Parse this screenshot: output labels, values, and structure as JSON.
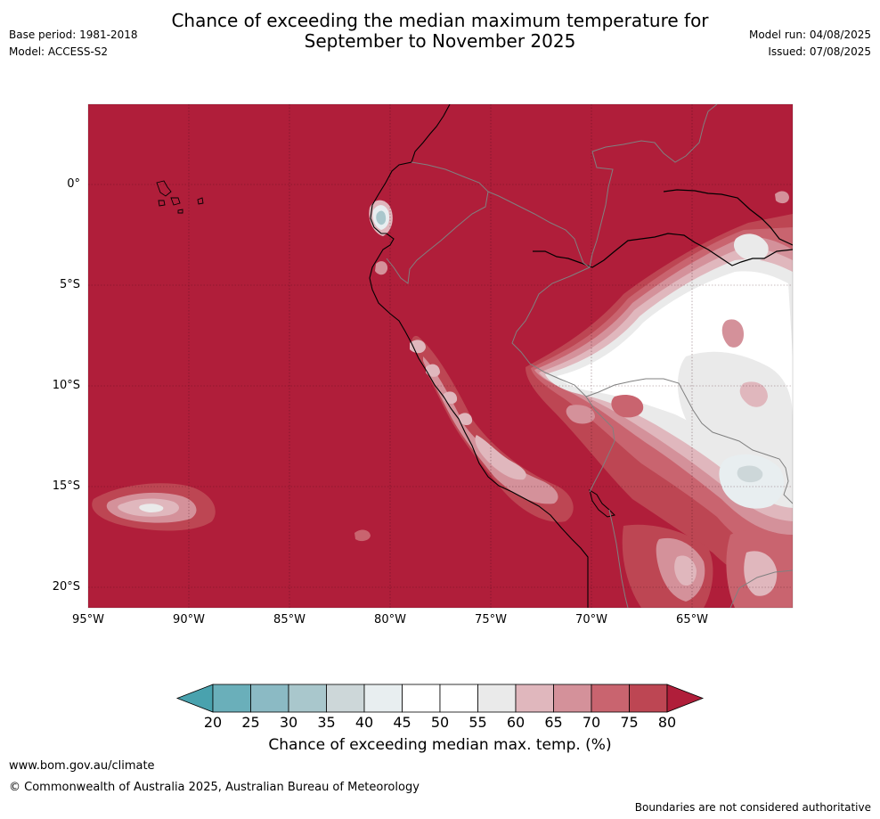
{
  "header": {
    "base_period": "Base period: 1981-2018",
    "model": "Model: ACCESS-S2",
    "title_line1": "Chance of exceeding the median maximum temperature for",
    "title_line2": "September to November 2025",
    "model_run": "Model run: 04/08/2025",
    "issued": "Issued: 07/08/2025"
  },
  "map": {
    "lat_labels": [
      "0°",
      "5°S",
      "10°S",
      "15°S",
      "20°S"
    ],
    "lon_labels": [
      "95°W",
      "90°W",
      "85°W",
      "80°W",
      "75°W",
      "70°W",
      "65°W"
    ],
    "background_category": "80+",
    "background_color": "#b01e3a"
  },
  "colorbar": {
    "ticks": [
      "20",
      "25",
      "30",
      "35",
      "40",
      "45",
      "50",
      "55",
      "60",
      "65",
      "70",
      "75",
      "80"
    ],
    "colors": [
      "#49a2ae",
      "#6aafba",
      "#8bbac4",
      "#a9c7cc",
      "#cdd7d9",
      "#e8eef0",
      "#ffffff",
      "#ffffff",
      "#eaeaea",
      "#e0b7bd",
      "#d4919a",
      "#c9646f",
      "#bd4653",
      "#b01e3a"
    ],
    "label": "Chance of exceeding median max. temp. (%)"
  },
  "footer": {
    "website": "www.bom.gov.au/climate",
    "copyright": "© Commonwealth of Australia 2025, Australian Bureau of Meteorology",
    "disclaimer": "Boundaries are not considered authoritative"
  }
}
